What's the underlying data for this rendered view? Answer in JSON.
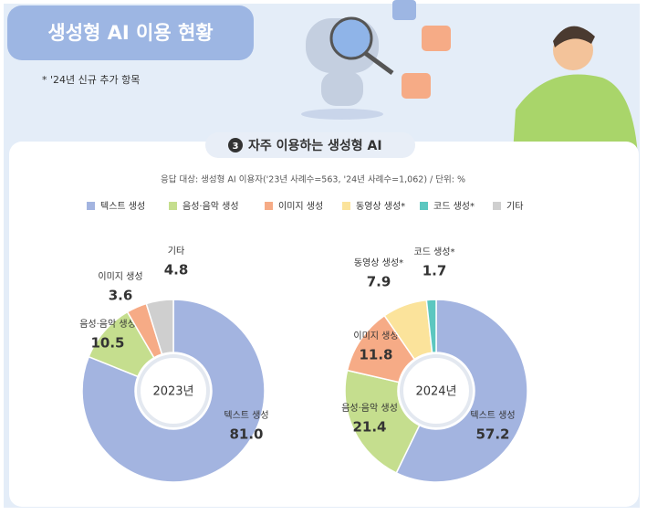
{
  "header": {
    "title": "생성형 AI 이용 현황",
    "note": "* '24년 신규 추가 항목",
    "section_number": "3",
    "section_title": "자주 이용하는 생성형 AI",
    "subtitle": "응답 대상: 생성형 AI 이용자('23년 사례수=563, '24년 사례수=1,062) / 단위: %"
  },
  "legend": {
    "items": [
      {
        "name": "텍스트 생성",
        "color": "#a3b4e0"
      },
      {
        "name": "음성·음악 생성",
        "color": "#c5de8e"
      },
      {
        "name": "이미지 생성",
        "color": "#f6ab86"
      },
      {
        "name": "동영상 생성*",
        "color": "#fbe39b"
      },
      {
        "name": "코드 생성*",
        "color": "#5cc7c0"
      },
      {
        "name": "기타",
        "color": "#cfcfcf"
      }
    ]
  },
  "chart_data": [
    {
      "type": "donut",
      "center_label": "2023년",
      "categories": [
        "텍스트 생성",
        "음성·음악 생성",
        "이미지 생성",
        "기타"
      ],
      "values": [
        81.0,
        10.5,
        3.6,
        4.8
      ],
      "value_labels": [
        "81.0",
        "10.5",
        "3.6",
        "4.8"
      ],
      "colors": [
        "#a3b4e0",
        "#c5de8e",
        "#f6ab86",
        "#cfcfcf"
      ]
    },
    {
      "type": "donut",
      "center_label": "2024년",
      "categories": [
        "텍스트 생성",
        "음성·음악 생성",
        "이미지 생성",
        "동영상 생성*",
        "코드 생성*"
      ],
      "values": [
        57.2,
        21.4,
        11.8,
        7.9,
        1.7
      ],
      "value_labels": [
        "57.2",
        "21.4",
        "11.8",
        "7.9",
        "1.7"
      ],
      "colors": [
        "#a3b4e0",
        "#c5de8e",
        "#f6ab86",
        "#fbe39b",
        "#5cc7c0"
      ]
    }
  ]
}
